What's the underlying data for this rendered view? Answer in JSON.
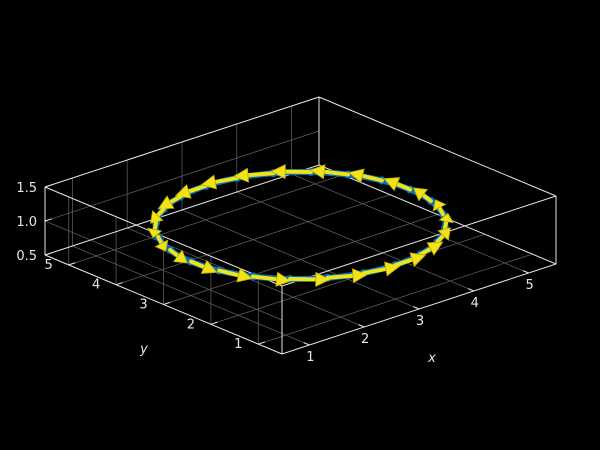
{
  "chart_data": {
    "type": "quiver3d",
    "title": "",
    "xlabel": "x",
    "ylabel": "y",
    "zlabel": "",
    "xlim": [
      0.5,
      5.5
    ],
    "ylim": [
      0.5,
      5.5
    ],
    "zlim": [
      0.5,
      1.5
    ],
    "xticks": [
      "1",
      "2",
      "3",
      "4",
      "5"
    ],
    "yticks": [
      "1",
      "2",
      "3",
      "4",
      "5"
    ],
    "zticks": [
      "0.5",
      "1.0",
      "1.5"
    ],
    "grid": true,
    "box": true,
    "series": [
      {
        "role": "circle",
        "center": [
          3,
          3,
          1
        ],
        "radius": 2,
        "z": 1,
        "points": 24
      },
      {
        "role": "tangent-arrows",
        "count": 24,
        "length": 0.55,
        "direction": "counterclockwise"
      }
    ],
    "colors": {
      "background": "#000000",
      "axes": "#e6e6e6",
      "grid": "#5a5a5a",
      "circle": "#0072bd",
      "arrows": "#f2e21a"
    }
  }
}
